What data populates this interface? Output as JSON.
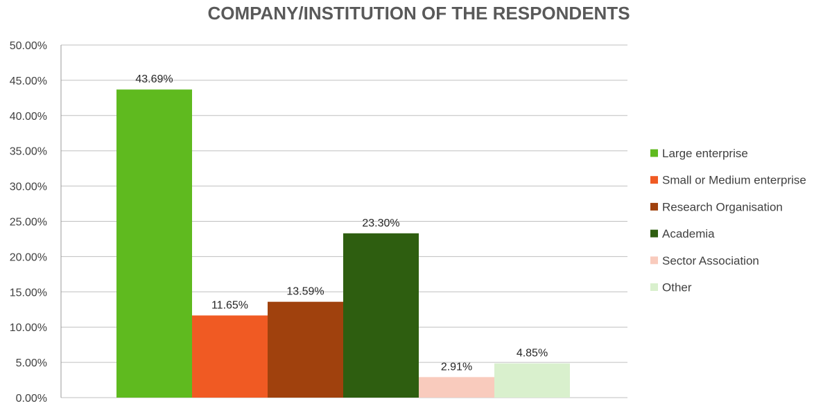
{
  "chart_data": {
    "type": "bar",
    "title": "COMPANY/INSTITUTION OF THE RESPONDENTS",
    "xlabel": "",
    "ylabel": "",
    "ylim": [
      0,
      50
    ],
    "y_tick_step": 5,
    "y_tick_labels": [
      "0.00%",
      "5.00%",
      "10.00%",
      "15.00%",
      "20.00%",
      "25.00%",
      "30.00%",
      "35.00%",
      "40.00%",
      "45.00%",
      "50.00%"
    ],
    "grid": true,
    "legend_position": "right",
    "categories": [
      "Large enterprise",
      "Small or Medium enterprise",
      "Research Organisation",
      "Academia",
      "Sector Association",
      "Other"
    ],
    "values": [
      43.69,
      11.65,
      13.59,
      23.3,
      2.91,
      4.85
    ],
    "data_labels": [
      "43.69%",
      "11.65%",
      "13.59%",
      "23.30%",
      "2.91%",
      "4.85%"
    ],
    "colors": [
      "#5fba1f",
      "#f05a23",
      "#a0410d",
      "#2e5e10",
      "#f9cbbd",
      "#d9f0cd"
    ]
  }
}
